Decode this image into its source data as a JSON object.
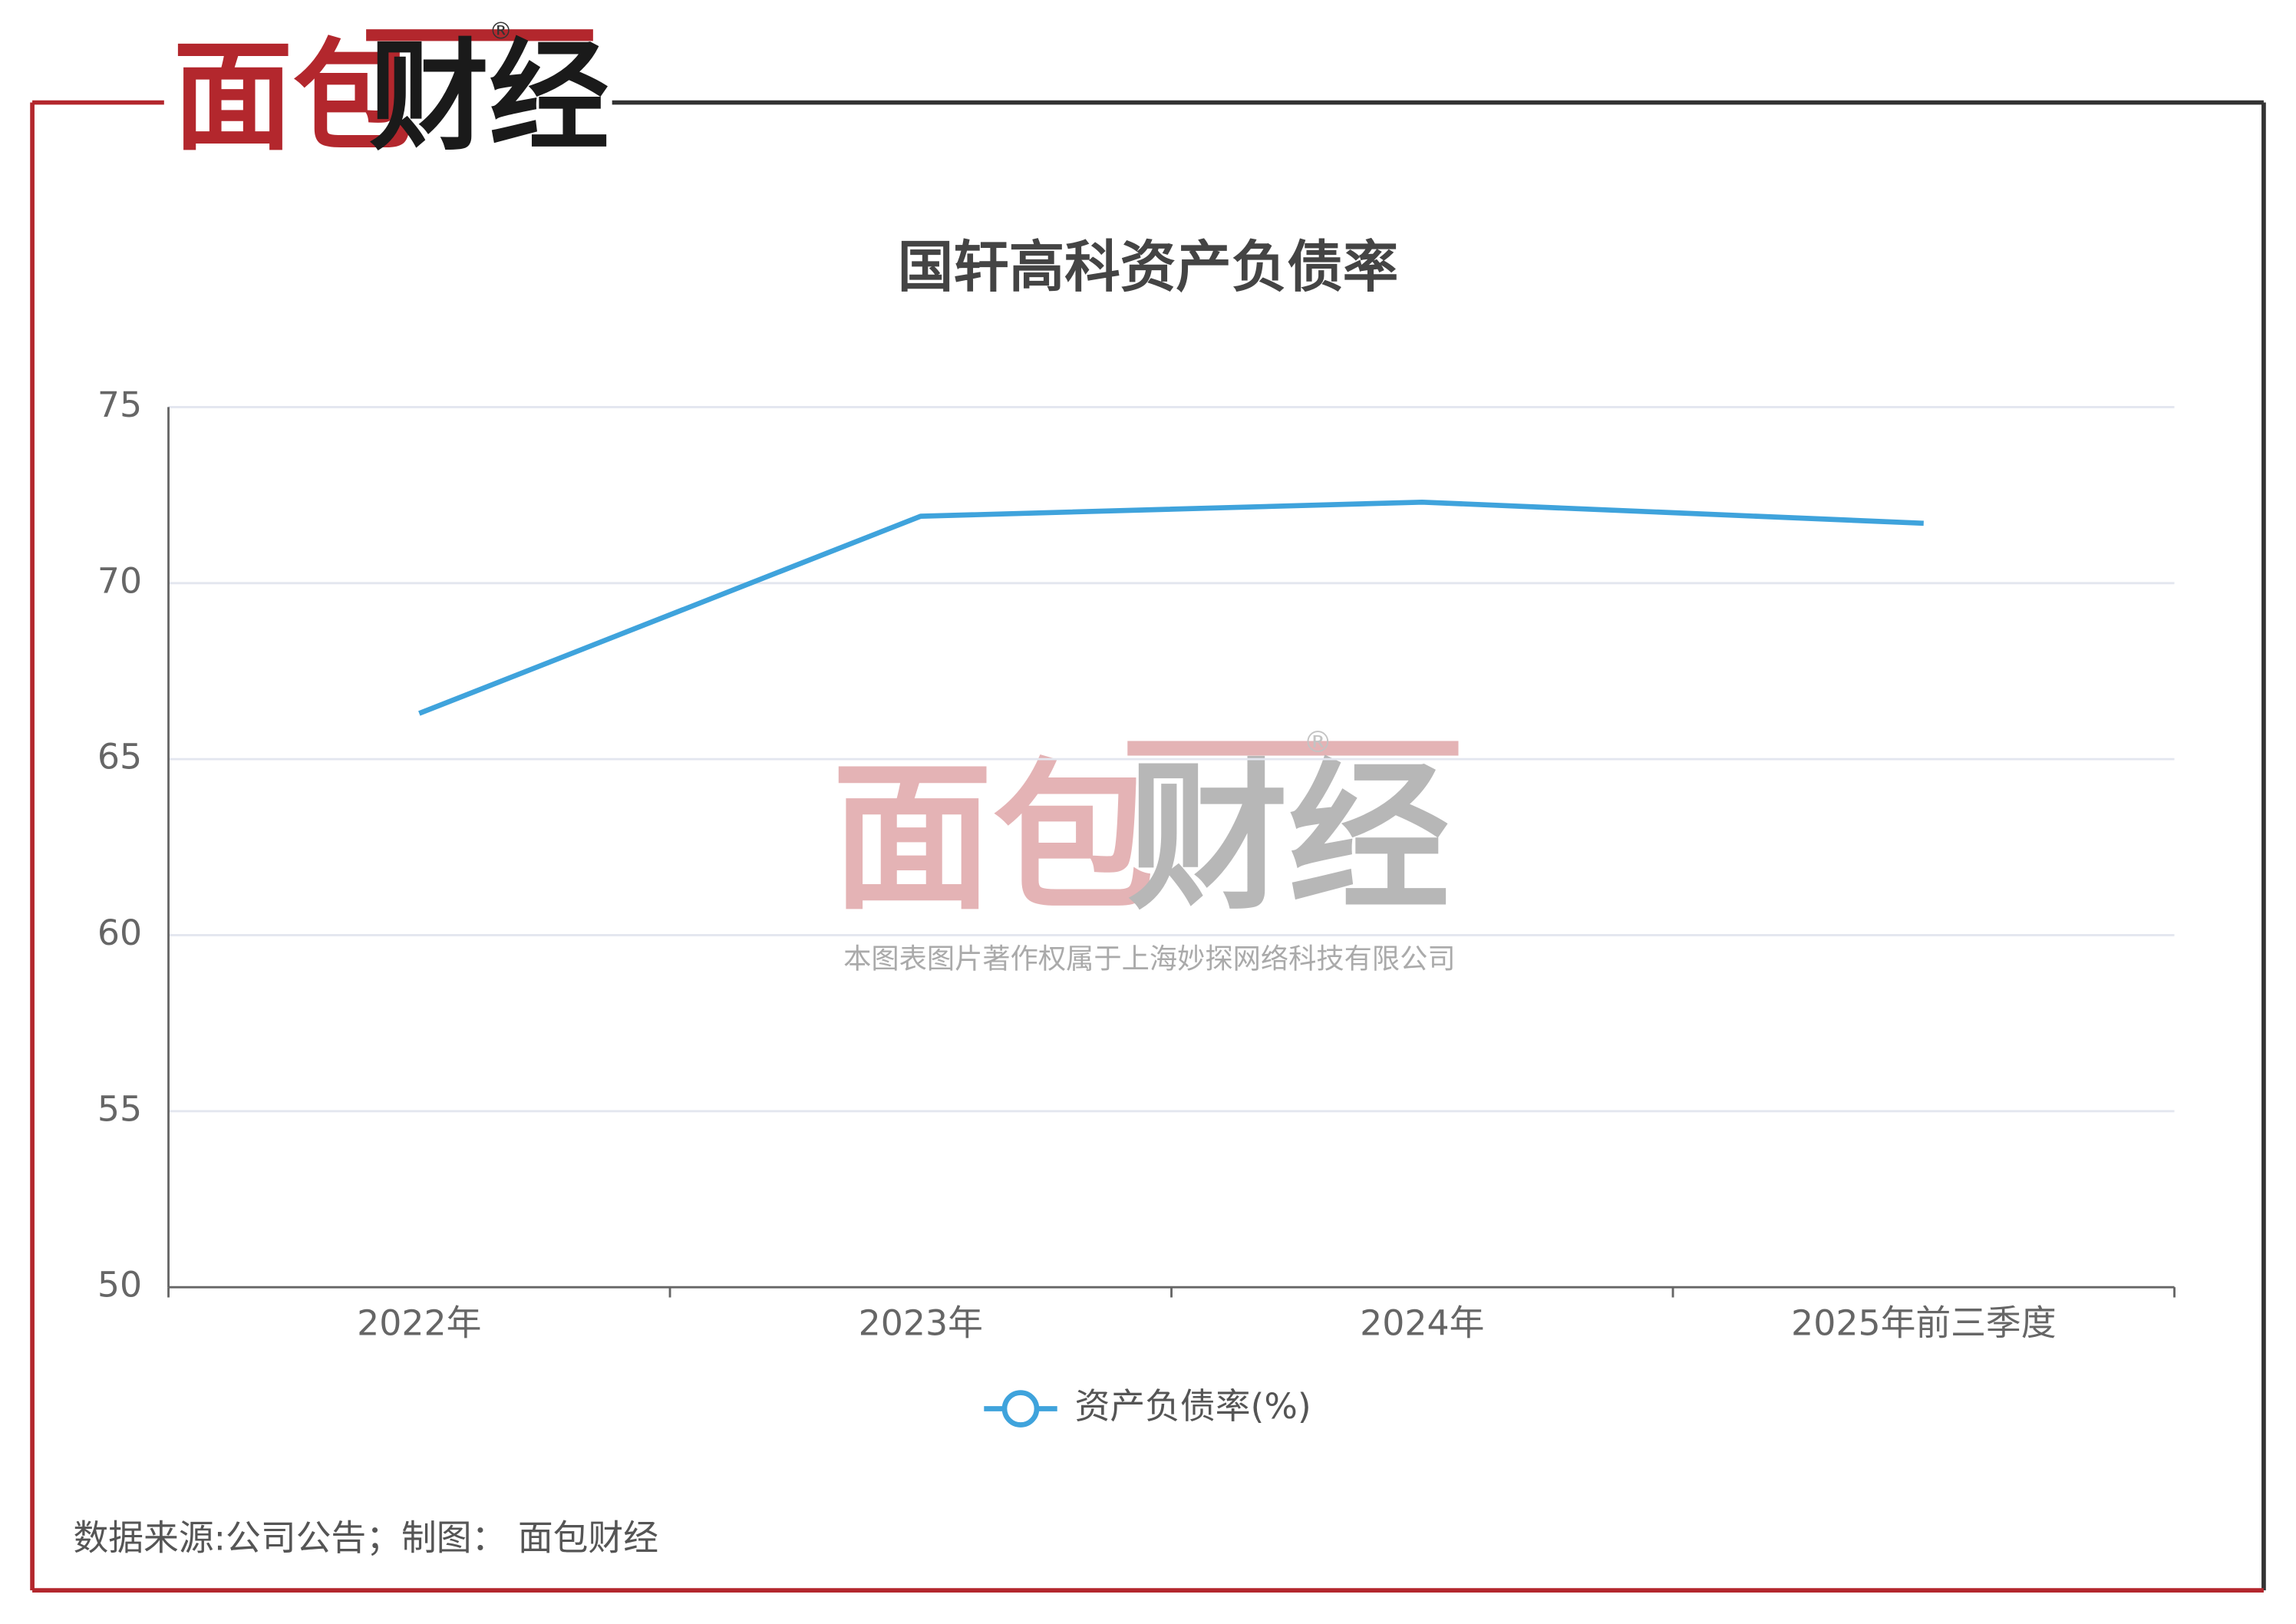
{
  "logo": {
    "parts": [
      "面包",
      "财经"
    ],
    "mark": "®"
  },
  "watermark": {
    "parts": [
      "面包",
      "财经"
    ],
    "mark": "®",
    "text": "本图表图片著作权属于上海妙探网络科技有限公司"
  },
  "source": "数据来源:公司公告；制图： 面包财经",
  "chart_data": {
    "type": "line",
    "title": "国轩高科资产负债率",
    "categories": [
      "2022年",
      "2023年",
      "2024年",
      "2025年前三季度"
    ],
    "series": [
      {
        "name": "资产负债率(%)",
        "color": "#3fa3dc",
        "values": [
          66.3,
          71.9,
          72.3,
          71.7
        ]
      }
    ],
    "ylim": [
      50,
      75
    ],
    "yticks": [
      50,
      55,
      60,
      65,
      70,
      75
    ],
    "grid": true,
    "legend": "bottom"
  }
}
